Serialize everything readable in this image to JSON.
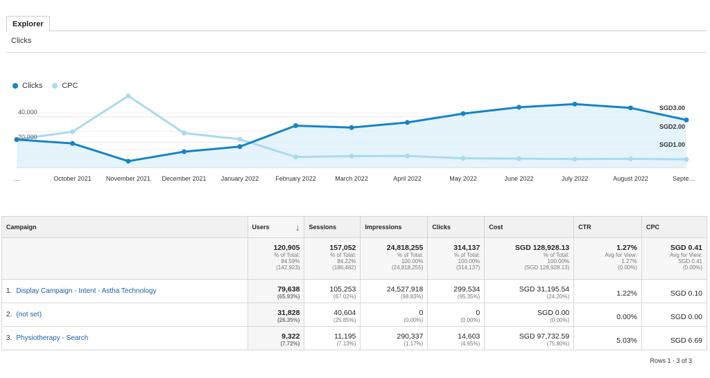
{
  "tabs": {
    "explorer": "Explorer"
  },
  "metric_label": "Clicks",
  "legend": [
    {
      "label": "Clicks",
      "color": "#1484c6"
    },
    {
      "label": "CPC",
      "color": "#a9daf0"
    }
  ],
  "chart_data": {
    "type": "line",
    "x": [
      "…",
      "October 2021",
      "November 2021",
      "December 2021",
      "January 2022",
      "February 2022",
      "March 2022",
      "April 2022",
      "May 2022",
      "June 2022",
      "July 2022",
      "August 2022",
      "Septe…"
    ],
    "series": [
      {
        "name": "Clicks",
        "axis": "left",
        "color": "#1484c6",
        "values": [
          22000,
          19000,
          5000,
          12500,
          16500,
          33000,
          31500,
          35500,
          42500,
          47500,
          50000,
          47000,
          37500
        ]
      },
      {
        "name": "CPC",
        "axis": "right",
        "color": "#a9daf0",
        "values": [
          1.55,
          1.97,
          3.95,
          1.9,
          1.56,
          0.58,
          0.63,
          0.64,
          0.51,
          0.49,
          0.47,
          0.48,
          0.45
        ]
      }
    ],
    "y_left_ticks": [
      "40,000",
      "20,000"
    ],
    "y_right_ticks": [
      "SGD3.00",
      "SGD2.00",
      "SGD1.00"
    ],
    "ylim_left": [
      0,
      60000
    ],
    "ylim_right": [
      0,
      4.2
    ],
    "area_fill": true
  },
  "table": {
    "headers": [
      "Campaign",
      "Users",
      "Sessions",
      "Impressions",
      "Clicks",
      "Cost",
      "CTR",
      "CPC"
    ],
    "totals": [
      {
        "main": "120,905",
        "sub": [
          "% of Total:",
          "84.59%",
          "(142,923)"
        ]
      },
      {
        "main": "157,052",
        "sub": [
          "% of Total:",
          "84.22%",
          "(186,482)"
        ]
      },
      {
        "main": "24,818,255",
        "sub": [
          "% of Total:",
          "100.00%",
          "(24,818,255)"
        ]
      },
      {
        "main": "314,137",
        "sub": [
          "% of Total:",
          "100.00%",
          "(314,137)"
        ]
      },
      {
        "main": "SGD 128,928.13",
        "sub": [
          "% of Total:",
          "100.00%",
          "(SGD 128,928.13)"
        ]
      },
      {
        "main": "1.27%",
        "sub": [
          "Avg for View:",
          "1.27%",
          "(0.00%)"
        ]
      },
      {
        "main": "SGD 0.41",
        "sub": [
          "Avg for View:",
          "SGD 0.41",
          "(0.00%)"
        ]
      }
    ],
    "rows": [
      {
        "index": "1.",
        "campaign": "Display Campaign - Intent - Astha Technology",
        "cells": [
          {
            "main": "79,638",
            "sub": "(65.93%)"
          },
          {
            "main": "105,253",
            "sub": "(67.02%)"
          },
          {
            "main": "24,527,918",
            "sub": "(98.83%)"
          },
          {
            "main": "299,534",
            "sub": "(95.35%)"
          },
          {
            "main": "SGD 31,195.54",
            "sub": "(24.20%)"
          },
          {
            "main": "1.22%",
            "sub": ""
          },
          {
            "main": "SGD 0.10",
            "sub": ""
          }
        ]
      },
      {
        "index": "2.",
        "campaign": "(not set)",
        "cells": [
          {
            "main": "31,828",
            "sub": "(26.35%)"
          },
          {
            "main": "40,604",
            "sub": "(25.85%)"
          },
          {
            "main": "0",
            "sub": "(0.00%)"
          },
          {
            "main": "0",
            "sub": "(0.00%)"
          },
          {
            "main": "SGD 0.00",
            "sub": "(0.00%)"
          },
          {
            "main": "0.00%",
            "sub": ""
          },
          {
            "main": "SGD 0.00",
            "sub": ""
          }
        ]
      },
      {
        "index": "3.",
        "campaign": "Physiotherapy - Search",
        "cells": [
          {
            "main": "9,322",
            "sub": "(7.72%)"
          },
          {
            "main": "11,195",
            "sub": "(7.13%)"
          },
          {
            "main": "290,337",
            "sub": "(1.17%)"
          },
          {
            "main": "14,603",
            "sub": "(4.65%)"
          },
          {
            "main": "SGD 97,732.59",
            "sub": "(75.80%)"
          },
          {
            "main": "5.03%",
            "sub": ""
          },
          {
            "main": "SGD 6.69",
            "sub": ""
          }
        ]
      }
    ],
    "sort_icon": "arrow-down-icon"
  },
  "rows_info": "Rows 1 - 3 of 3"
}
